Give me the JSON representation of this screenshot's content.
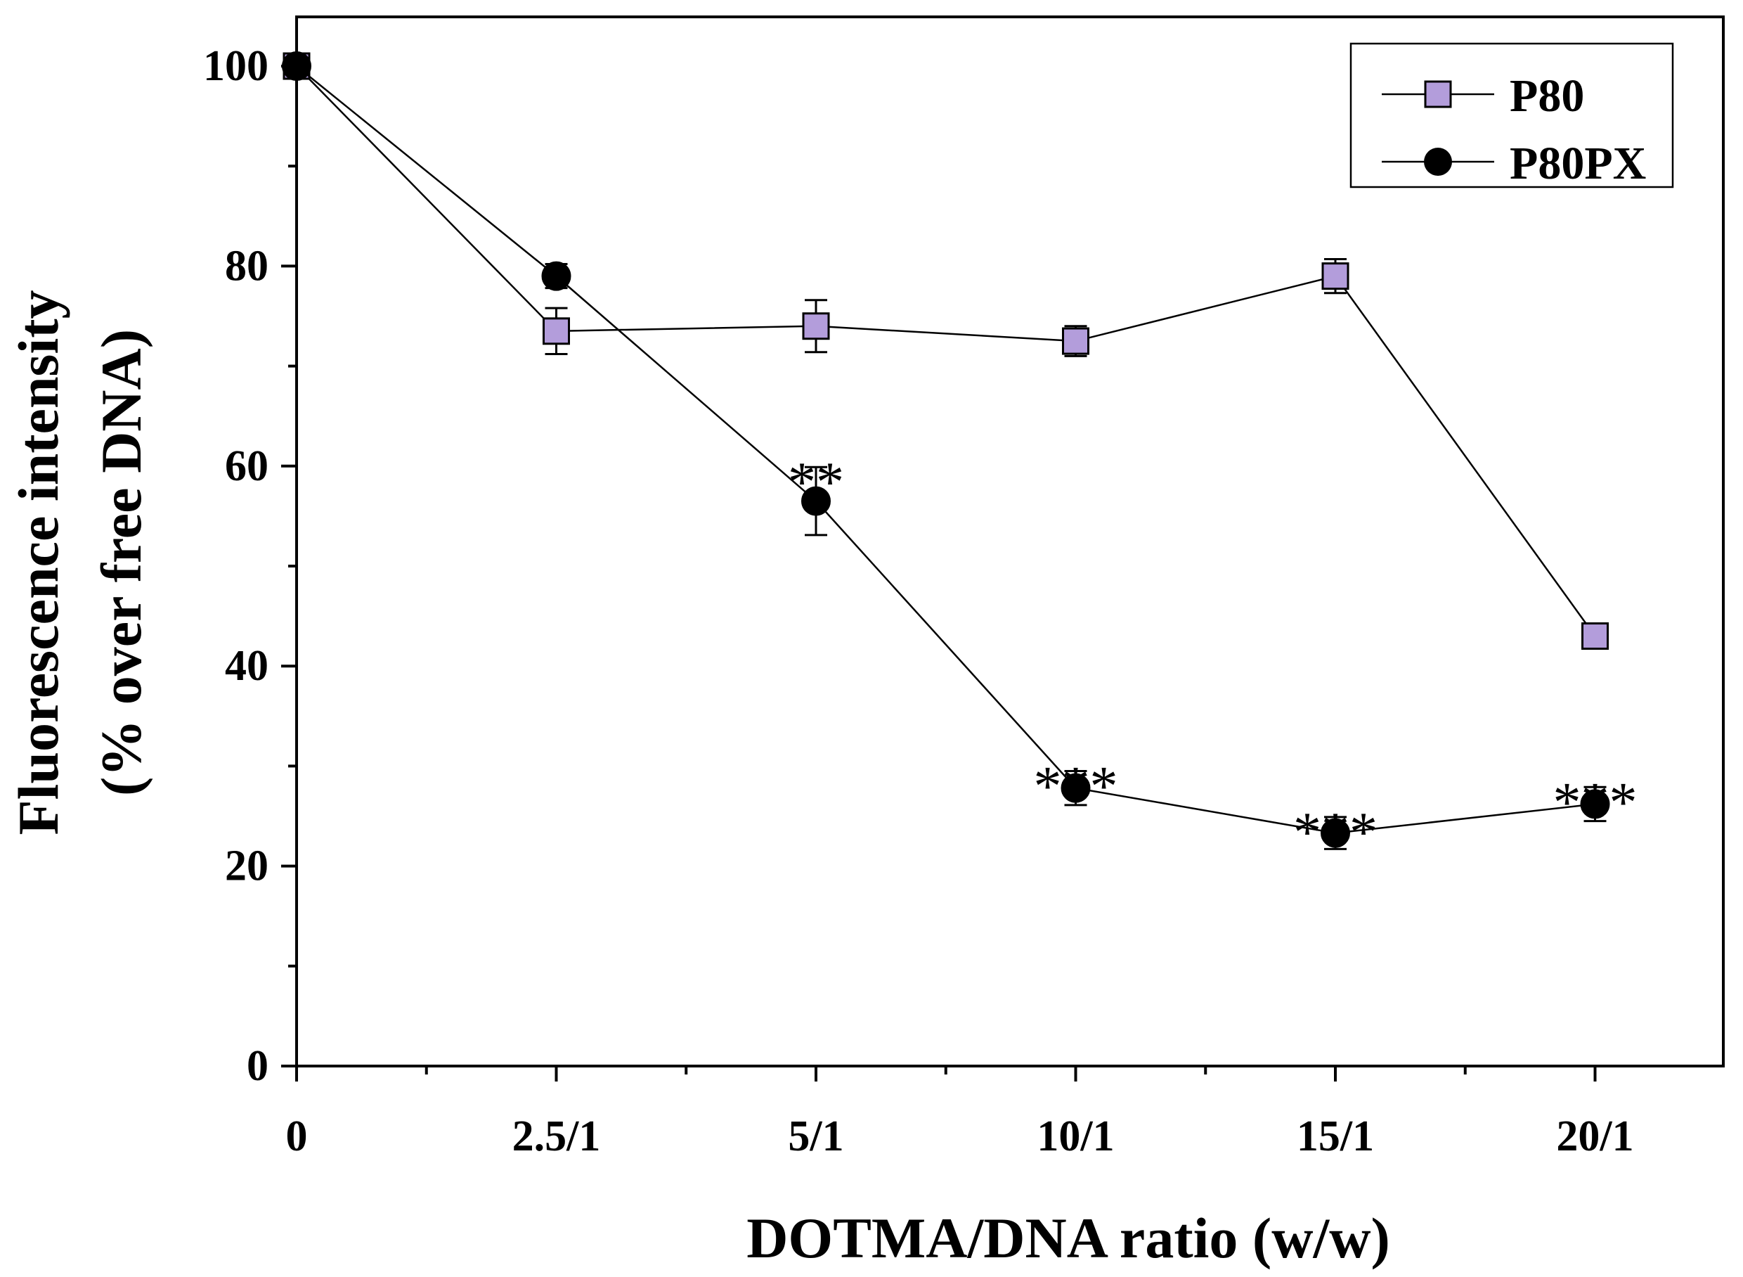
{
  "chart_data": {
    "type": "line",
    "xlabel": "DOTMA/DNA ratio (w/w)",
    "ylabel_lines": [
      "Fluorescence intensity",
      "(% over free DNA)"
    ],
    "categories": [
      "0",
      "2.5/1",
      "5/1",
      "10/1",
      "15/1",
      "20/1"
    ],
    "ylim": [
      0,
      100
    ],
    "yticks": [
      0,
      20,
      40,
      60,
      80,
      100
    ],
    "grid": false,
    "legend_position": "top-right",
    "series": [
      {
        "name": "P80",
        "marker": "square",
        "color": "#b39ddb",
        "values": [
          100,
          73.5,
          74,
          72.5,
          79,
          43
        ],
        "errors": [
          0,
          2.3,
          2.6,
          1.5,
          1.7,
          1.2
        ]
      },
      {
        "name": "P80PX",
        "marker": "circle",
        "color": "#000000",
        "values": [
          100,
          79,
          56.5,
          27.8,
          23.3,
          26.2
        ],
        "errors": [
          0,
          1.2,
          3.4,
          1.7,
          1.6,
          1.7
        ]
      }
    ],
    "annotations": [
      {
        "category_index": 2,
        "text": "**"
      },
      {
        "category_index": 3,
        "text": "***"
      },
      {
        "category_index": 4,
        "text": "***"
      },
      {
        "category_index": 5,
        "text": "***"
      }
    ]
  }
}
